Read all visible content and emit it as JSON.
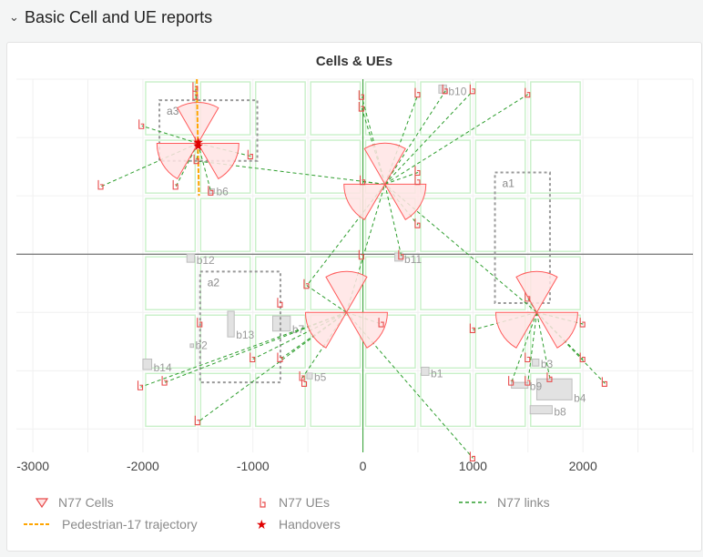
{
  "header": {
    "title": "Basic Cell and UE reports"
  },
  "colors": {
    "cell": "#ff5a5a",
    "cellFill": "#ffe4e4",
    "ue": "#e84b4b",
    "link": "#2e9e2e",
    "traj": "#ffa500",
    "handover": "#e00000",
    "block": "#c8f0c8"
  },
  "chart_data": {
    "title": "Cells & UEs",
    "type": "scatter",
    "xlim": [
      -3150,
      3000
    ],
    "ylim": [
      -1700,
      1500
    ],
    "x_ticks": [
      -3000,
      -2000,
      -1000,
      0,
      1000,
      2000
    ],
    "x_tick_labels": [
      "-3000",
      "-2000",
      "-1000",
      "0",
      "1000",
      "2000"
    ],
    "sites": [
      {
        "x": -1500,
        "y": 950,
        "sectors": [
          {
            "az": 0
          },
          {
            "az": 120
          },
          {
            "az": 240
          }
        ]
      },
      {
        "x": 200,
        "y": 600,
        "sectors": [
          {
            "az": 0
          },
          {
            "az": 120
          },
          {
            "az": 240
          }
        ]
      },
      {
        "x": -150,
        "y": -500,
        "sectors": [
          {
            "az": 0
          },
          {
            "az": 120
          },
          {
            "az": 240
          }
        ]
      },
      {
        "x": 1580,
        "y": -500,
        "sectors": [
          {
            "az": 0
          },
          {
            "az": 120
          },
          {
            "az": 240
          }
        ]
      }
    ],
    "ues": [
      {
        "x": -1520,
        "y": 1420
      },
      {
        "x": -1520,
        "y": 1350
      },
      {
        "x": -2010,
        "y": 1100
      },
      {
        "x": -1500,
        "y": 950
      },
      {
        "x": -1510,
        "y": 800
      },
      {
        "x": -1020,
        "y": 840
      },
      {
        "x": -1700,
        "y": 580
      },
      {
        "x": -1380,
        "y": 530
      },
      {
        "x": -2380,
        "y": 580
      },
      {
        "x": -10,
        "y": 1350
      },
      {
        "x": -10,
        "y": 1250
      },
      {
        "x": 500,
        "y": 1370
      },
      {
        "x": 1500,
        "y": 1370
      },
      {
        "x": 750,
        "y": 1400
      },
      {
        "x": 1000,
        "y": 1400
      },
      {
        "x": 500,
        "y": 700
      },
      {
        "x": 0,
        "y": 620
      },
      {
        "x": 500,
        "y": 620
      },
      {
        "x": 500,
        "y": 250
      },
      {
        "x": -10,
        "y": -20
      },
      {
        "x": 350,
        "y": -20
      },
      {
        "x": -510,
        "y": -270
      },
      {
        "x": -1480,
        "y": -600
      },
      {
        "x": -750,
        "y": -430
      },
      {
        "x": 170,
        "y": -600
      },
      {
        "x": -750,
        "y": -900
      },
      {
        "x": -1000,
        "y": -900
      },
      {
        "x": -550,
        "y": -1060
      },
      {
        "x": -530,
        "y": -1110
      },
      {
        "x": -1800,
        "y": -1100
      },
      {
        "x": -2020,
        "y": -1140
      },
      {
        "x": -1500,
        "y": -1440
      },
      {
        "x": 1000,
        "y": -650
      },
      {
        "x": 2000,
        "y": -600
      },
      {
        "x": 1500,
        "y": -380
      },
      {
        "x": 1500,
        "y": -900
      },
      {
        "x": 1350,
        "y": -1100
      },
      {
        "x": 1500,
        "y": -1100
      },
      {
        "x": 1700,
        "y": -1070
      },
      {
        "x": 2000,
        "y": -900
      },
      {
        "x": 2200,
        "y": -1110
      },
      {
        "x": 1000,
        "y": -1750
      }
    ],
    "links": [
      [
        -1500,
        950,
        -1520,
        1420
      ],
      [
        -1500,
        950,
        -2010,
        1100
      ],
      [
        -1500,
        950,
        -1020,
        840
      ],
      [
        -1500,
        950,
        -1700,
        580
      ],
      [
        -1500,
        950,
        -1380,
        530
      ],
      [
        -1500,
        950,
        -2380,
        580
      ],
      [
        -1500,
        950,
        -1510,
        800
      ],
      [
        200,
        600,
        -10,
        1350
      ],
      [
        200,
        600,
        500,
        1370
      ],
      [
        200,
        600,
        1500,
        1370
      ],
      [
        200,
        600,
        750,
        1400
      ],
      [
        200,
        600,
        1000,
        1400
      ],
      [
        200,
        600,
        500,
        700
      ],
      [
        200,
        600,
        0,
        620
      ],
      [
        200,
        600,
        500,
        250
      ],
      [
        200,
        600,
        -1520,
        800
      ],
      [
        200,
        600,
        -510,
        -270
      ],
      [
        200,
        600,
        350,
        -20
      ],
      [
        200,
        600,
        -10,
        1250
      ],
      [
        -150,
        -500,
        -510,
        -270
      ],
      [
        -150,
        -500,
        170,
        -600
      ],
      [
        -150,
        -500,
        -750,
        -900
      ],
      [
        -150,
        -500,
        -1000,
        -900
      ],
      [
        -150,
        -500,
        -550,
        -1060
      ],
      [
        -150,
        -500,
        -1800,
        -1100
      ],
      [
        -150,
        -500,
        -2020,
        -1140
      ],
      [
        -150,
        -500,
        -1500,
        -1440
      ],
      [
        -150,
        -500,
        1000,
        -1750
      ],
      [
        -150,
        -500,
        200,
        600
      ],
      [
        1580,
        -500,
        1000,
        -650
      ],
      [
        1580,
        -500,
        2000,
        -600
      ],
      [
        1580,
        -500,
        1500,
        -380
      ],
      [
        1580,
        -500,
        1350,
        -1100
      ],
      [
        1580,
        -500,
        1500,
        -1100
      ],
      [
        1580,
        -500,
        1700,
        -1070
      ],
      [
        1580,
        -500,
        2000,
        -900
      ],
      [
        1580,
        -500,
        2200,
        -1110
      ],
      [
        1580,
        -500,
        200,
        600
      ],
      [
        1580,
        -500,
        2000,
        -600
      ]
    ],
    "trajectory": [
      [
        -1510,
        1500
      ],
      [
        -1505,
        1200
      ],
      [
        -1500,
        950
      ],
      [
        -1495,
        700
      ],
      [
        -1490,
        500
      ]
    ],
    "handovers": [
      [
        -1500,
        960
      ],
      [
        -1500,
        930
      ]
    ],
    "boxes": [
      {
        "label": "a1",
        "x0": 1200,
        "x1": 1700,
        "y0": -420,
        "y1": 700
      },
      {
        "label": "a2",
        "x0": -1480,
        "x1": -750,
        "y0": -1100,
        "y1": -150
      },
      {
        "label": "a3",
        "x0": -1850,
        "x1": -960,
        "y0": 800,
        "y1": 1320
      }
    ],
    "buildings": [
      {
        "label": "b1",
        "x0": 530,
        "x1": 600,
        "y0": -1040,
        "y1": -970
      },
      {
        "label": "b10",
        "x0": 690,
        "x1": 760,
        "y0": 1380,
        "y1": 1450
      },
      {
        "label": "b11",
        "x0": 290,
        "x1": 360,
        "y0": -60,
        "y1": 10
      },
      {
        "label": "b12",
        "x0": -1600,
        "x1": -1530,
        "y0": -70,
        "y1": 0
      },
      {
        "label": "b13",
        "x0": -1230,
        "x1": -1170,
        "y0": -710,
        "y1": -490
      },
      {
        "label": "b14",
        "x0": -2000,
        "x1": -1920,
        "y0": -990,
        "y1": -900
      },
      {
        "label": "b2",
        "x0": -1570,
        "x1": -1540,
        "y0": -800,
        "y1": -770
      },
      {
        "label": "b3",
        "x0": 1540,
        "x1": 1600,
        "y0": -960,
        "y1": -900
      },
      {
        "label": "b4",
        "x0": 1580,
        "x1": 1900,
        "y0": -1250,
        "y1": -1070
      },
      {
        "label": "b5",
        "x0": -510,
        "x1": -460,
        "y0": -1070,
        "y1": -1020
      },
      {
        "label": "b6",
        "x0": -1400,
        "x1": -1350,
        "y0": 520,
        "y1": 560
      },
      {
        "label": "b7",
        "x0": -820,
        "x1": -660,
        "y0": -660,
        "y1": -530
      },
      {
        "label": "b8",
        "x0": 1520,
        "x1": 1720,
        "y0": -1370,
        "y1": -1300
      },
      {
        "label": "b9",
        "x0": 1350,
        "x1": 1500,
        "y0": -1150,
        "y1": -1100
      }
    ]
  },
  "legend": {
    "cells": "N77 Cells",
    "ues": "N77 UEs",
    "links": "N77 links",
    "trajectory": "Pedestrian-17 trajectory",
    "handovers": "Handovers"
  }
}
